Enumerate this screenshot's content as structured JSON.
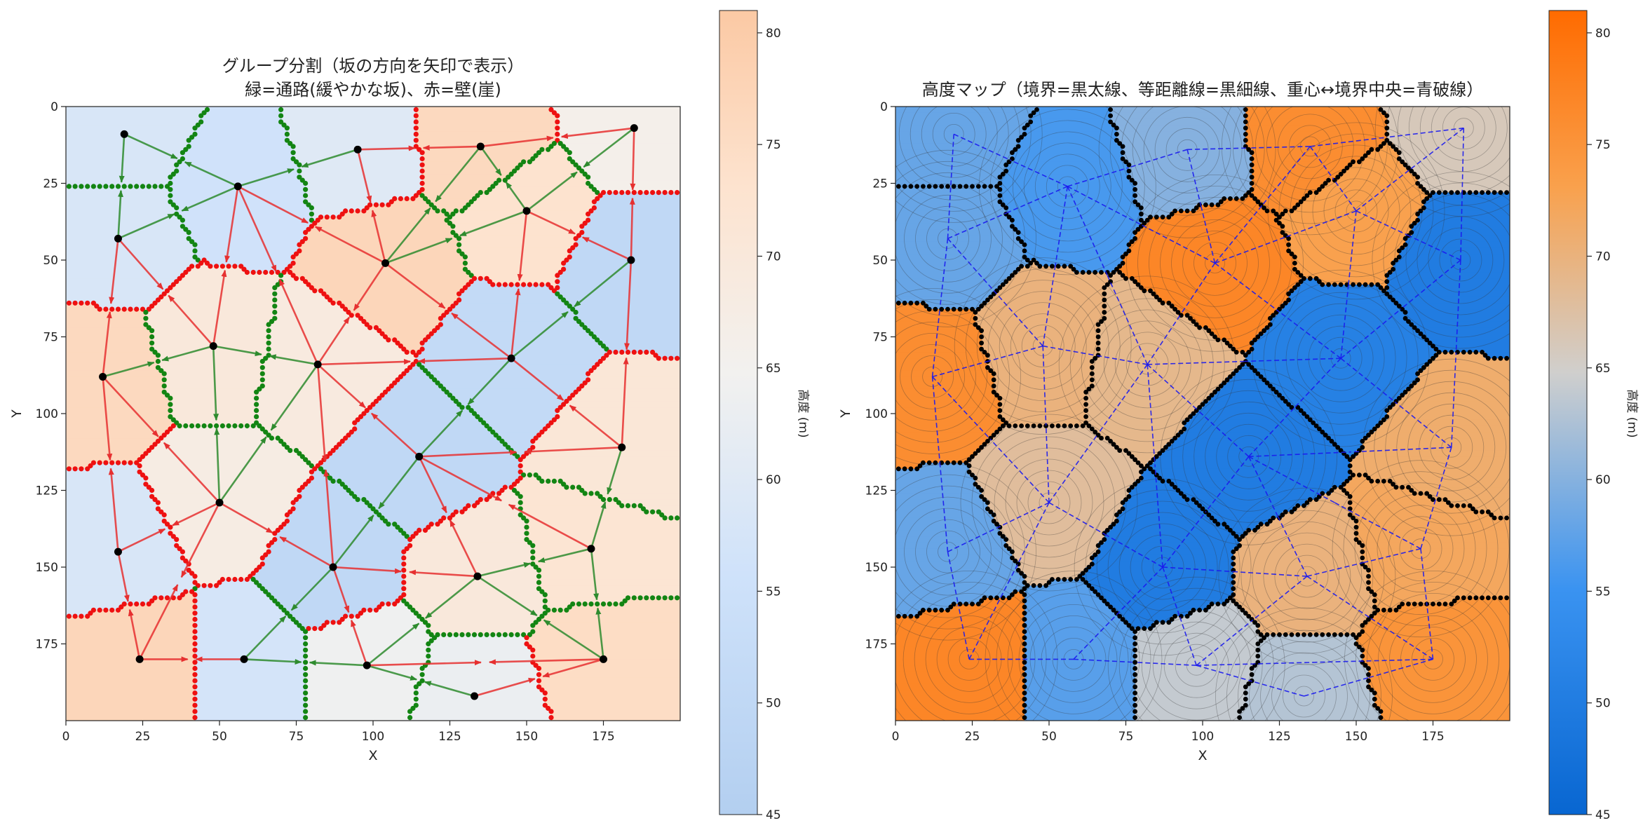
{
  "chart_data": [
    {
      "type": "heatmap",
      "title_lines": [
        "グループ分割（坂の方向を矢印で表示）",
        "緑=通路(緩やかな坂)、赤=壁(崖)"
      ],
      "xlabel": "X",
      "ylabel": "Y",
      "xlim": [
        0,
        200
      ],
      "ylim": [
        200,
        0
      ],
      "xticks": [
        0,
        25,
        50,
        75,
        100,
        125,
        150,
        175
      ],
      "yticks": [
        0,
        25,
        50,
        75,
        100,
        125,
        150,
        175
      ],
      "colorbar": {
        "label": "高度 (m)",
        "range": [
          45,
          81
        ],
        "ticks": [
          45,
          50,
          55,
          60,
          65,
          70,
          75,
          80
        ],
        "colormap": "light blue–white–light orange"
      },
      "legend": {
        "green": "通路(緩やかな坂)",
        "red": "壁(崖)"
      }
    },
    {
      "type": "heatmap",
      "title_lines": [
        "高度マップ（境界=黒太線、等距離線=黒細線、重心↔境界中央=青破線）"
      ],
      "xlabel": "X",
      "ylabel": "Y",
      "xlim": [
        0,
        200
      ],
      "ylim": [
        200,
        0
      ],
      "xticks": [
        0,
        25,
        50,
        75,
        100,
        125,
        150,
        175
      ],
      "yticks": [
        0,
        25,
        50,
        75,
        100,
        125,
        150,
        175
      ],
      "colorbar": {
        "label": "高度 (m)",
        "range": [
          45,
          81
        ],
        "ticks": [
          45,
          50,
          55,
          60,
          65,
          70,
          75,
          80
        ],
        "colormap": "blue–gray–orange"
      }
    }
  ],
  "centroids": [
    [
      19,
      9
    ],
    [
      95,
      14
    ],
    [
      135,
      13
    ],
    [
      185,
      7
    ],
    [
      56,
      26
    ],
    [
      150,
      34
    ],
    [
      17,
      43
    ],
    [
      104,
      51
    ],
    [
      184,
      50
    ],
    [
      48,
      78
    ],
    [
      82,
      84
    ],
    [
      145,
      82
    ],
    [
      12,
      88
    ],
    [
      115,
      114
    ],
    [
      181,
      111
    ],
    [
      50,
      129
    ],
    [
      17,
      145
    ],
    [
      171,
      144
    ],
    [
      87,
      150
    ],
    [
      134,
      153
    ],
    [
      24,
      180
    ],
    [
      58,
      180
    ],
    [
      98,
      182
    ],
    [
      133,
      192
    ],
    [
      175,
      180
    ]
  ],
  "group_heights": [
    58,
    60,
    76,
    66,
    56,
    73,
    58,
    77,
    50,
    70,
    69,
    51,
    76,
    50,
    71,
    68,
    58,
    72,
    50,
    70,
    77,
    57,
    64,
    63,
    75
  ],
  "edges": [
    [
      0,
      4
    ],
    [
      0,
      6
    ],
    [
      1,
      2
    ],
    [
      1,
      4
    ],
    [
      1,
      7
    ],
    [
      2,
      3
    ],
    [
      2,
      5
    ],
    [
      2,
      7
    ],
    [
      3,
      5
    ],
    [
      3,
      8
    ],
    [
      4,
      6
    ],
    [
      4,
      7
    ],
    [
      4,
      9
    ],
    [
      4,
      10
    ],
    [
      5,
      7
    ],
    [
      5,
      8
    ],
    [
      5,
      11
    ],
    [
      6,
      9
    ],
    [
      6,
      12
    ],
    [
      7,
      10
    ],
    [
      7,
      11
    ],
    [
      8,
      11
    ],
    [
      8,
      14
    ],
    [
      9,
      10
    ],
    [
      9,
      12
    ],
    [
      9,
      15
    ],
    [
      10,
      11
    ],
    [
      10,
      13
    ],
    [
      10,
      15
    ],
    [
      10,
      18
    ],
    [
      11,
      13
    ],
    [
      11,
      14
    ],
    [
      12,
      15
    ],
    [
      12,
      16
    ],
    [
      13,
      14
    ],
    [
      13,
      17
    ],
    [
      13,
      18
    ],
    [
      13,
      19
    ],
    [
      14,
      17
    ],
    [
      15,
      16
    ],
    [
      15,
      18
    ],
    [
      15,
      20
    ],
    [
      16,
      20
    ],
    [
      17,
      19
    ],
    [
      17,
      24
    ],
    [
      18,
      19
    ],
    [
      18,
      21
    ],
    [
      18,
      22
    ],
    [
      19,
      22
    ],
    [
      19,
      24
    ],
    [
      20,
      21
    ],
    [
      21,
      22
    ],
    [
      22,
      23
    ],
    [
      22,
      24
    ],
    [
      23,
      24
    ]
  ]
}
